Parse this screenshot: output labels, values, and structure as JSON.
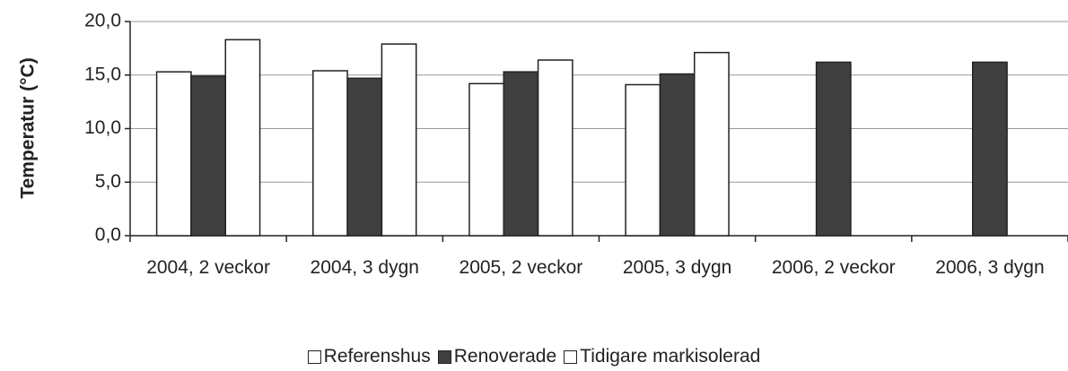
{
  "chart_data": {
    "type": "bar",
    "y_label": "Temperatur (°C)",
    "categories": [
      "2004, 2 veckor",
      "2004, 3 dygn",
      "2005, 2 veckor",
      "2005, 3 dygn",
      "2006, 2 veckor",
      "2006, 3 dygn"
    ],
    "series": [
      {
        "name": "Referenshus",
        "color": "#ffffff",
        "values": [
          15.3,
          15.4,
          14.2,
          14.1,
          null,
          null
        ]
      },
      {
        "name": "Renoverade",
        "color": "#404040",
        "values": [
          14.9,
          14.7,
          15.3,
          15.1,
          16.2,
          16.2
        ]
      },
      {
        "name": "Tidigare markisolerad",
        "color": "#ffffff",
        "values": [
          18.3,
          17.9,
          16.4,
          17.1,
          null,
          null
        ]
      }
    ],
    "ylim": [
      0,
      20
    ],
    "yticks": [
      {
        "value": 0,
        "label": "0,0"
      },
      {
        "value": 5,
        "label": "5,0"
      },
      {
        "value": 10,
        "label": "10,0"
      },
      {
        "value": 15,
        "label": "15,0"
      },
      {
        "value": 20,
        "label": "20,0"
      }
    ],
    "grid": true,
    "legend": "bottom"
  }
}
